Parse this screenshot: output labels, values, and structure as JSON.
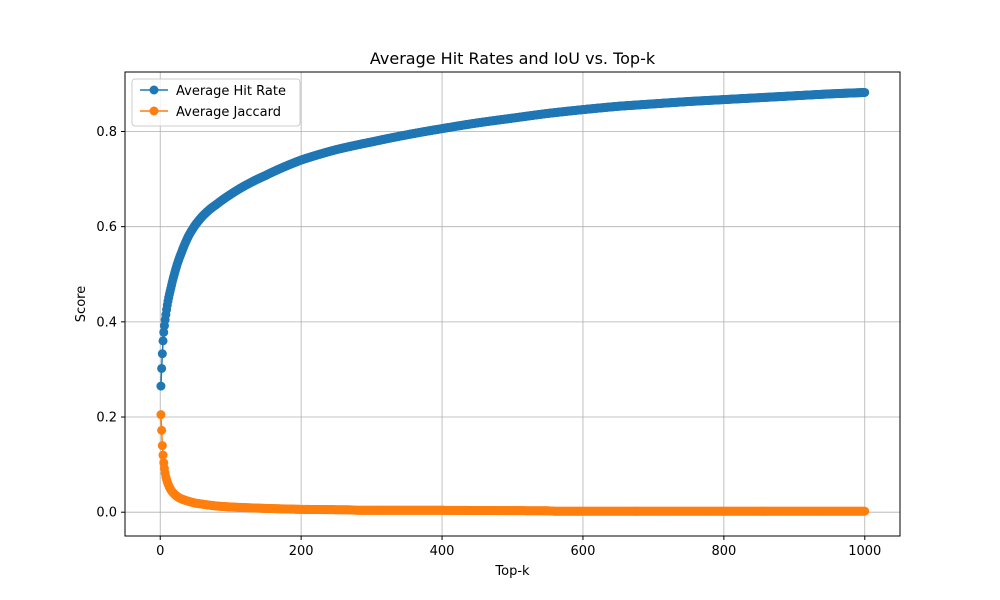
{
  "chart_data": {
    "type": "line",
    "title": "Average Hit Rates and IoU vs. Top-k",
    "xlabel": "Top-k",
    "ylabel": "Score",
    "xlim": [
      -50,
      1050
    ],
    "ylim": [
      -0.05,
      0.925
    ],
    "xticks": [
      0,
      200,
      400,
      600,
      800,
      1000
    ],
    "yticks": [
      0.0,
      0.2,
      0.4,
      0.6,
      0.8
    ],
    "xtick_labels": [
      "0",
      "200",
      "400",
      "600",
      "800",
      "1000"
    ],
    "ytick_labels": [
      "0.0",
      "0.2",
      "0.4",
      "0.6",
      "0.8"
    ],
    "grid": true,
    "legend_position": "top-left",
    "x_range": [
      1,
      1000
    ],
    "series": [
      {
        "name": "Average Hit Rate",
        "color": "#1f77b4",
        "marker": "circle",
        "x": [
          1,
          2,
          3,
          4,
          5,
          6,
          8,
          10,
          12,
          15,
          20,
          25,
          30,
          40,
          50,
          60,
          70,
          80,
          100,
          120,
          150,
          200,
          250,
          300,
          350,
          400,
          450,
          500,
          550,
          600,
          650,
          700,
          750,
          800,
          850,
          900,
          950,
          1000
        ],
        "y": [
          0.265,
          0.302,
          0.333,
          0.36,
          0.378,
          0.392,
          0.415,
          0.435,
          0.451,
          0.47,
          0.5,
          0.525,
          0.545,
          0.58,
          0.604,
          0.622,
          0.636,
          0.647,
          0.668,
          0.686,
          0.708,
          0.74,
          0.762,
          0.778,
          0.793,
          0.806,
          0.818,
          0.828,
          0.838,
          0.846,
          0.853,
          0.858,
          0.863,
          0.867,
          0.871,
          0.875,
          0.879,
          0.882
        ]
      },
      {
        "name": "Average Jaccard",
        "color": "#ff7f0e",
        "marker": "circle",
        "x": [
          1,
          2,
          3,
          4,
          5,
          6,
          7,
          8,
          10,
          12,
          15,
          20,
          25,
          30,
          40,
          50,
          60,
          80,
          100,
          150,
          200,
          270,
          280,
          400,
          550,
          560,
          800,
          1000
        ],
        "y": [
          0.205,
          0.172,
          0.14,
          0.12,
          0.104,
          0.092,
          0.082,
          0.074,
          0.064,
          0.056,
          0.047,
          0.038,
          0.032,
          0.028,
          0.023,
          0.019,
          0.017,
          0.013,
          0.011,
          0.008,
          0.006,
          0.005,
          0.004,
          0.004,
          0.003,
          0.002,
          0.002,
          0.002
        ]
      }
    ]
  }
}
